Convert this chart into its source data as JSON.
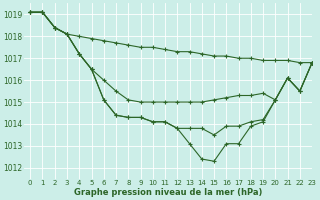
{
  "title": "Graphe pression niveau de la mer (hPa)",
  "bg_color": "#cceee8",
  "grid_color": "#b8d8d0",
  "line_color": "#2d6628",
  "xlim": [
    -0.5,
    23
  ],
  "ylim": [
    1011.5,
    1019.5
  ],
  "yticks": [
    1012,
    1013,
    1014,
    1015,
    1016,
    1017,
    1018,
    1019
  ],
  "xticks": [
    0,
    1,
    2,
    3,
    4,
    5,
    6,
    7,
    8,
    9,
    10,
    11,
    12,
    13,
    14,
    15,
    16,
    17,
    18,
    19,
    20,
    21,
    22,
    23
  ],
  "series": [
    {
      "x": [
        0,
        1,
        2,
        3,
        4,
        5,
        6,
        7,
        8,
        9,
        10,
        11,
        12,
        13,
        14,
        15,
        16,
        17,
        18,
        19,
        20,
        21,
        22,
        23
      ],
      "y": [
        1019.1,
        1019.1,
        1018.4,
        1018.1,
        1018.0,
        1017.9,
        1017.8,
        1017.7,
        1017.6,
        1017.5,
        1017.5,
        1017.4,
        1017.3,
        1017.3,
        1017.2,
        1017.1,
        1017.1,
        1017.0,
        1017.0,
        1016.9,
        1016.9,
        1016.9,
        1016.8,
        1016.8
      ]
    },
    {
      "x": [
        0,
        1,
        2,
        3,
        4,
        5,
        6,
        7,
        8,
        9,
        10,
        11,
        12,
        13,
        14,
        15,
        16,
        17,
        18,
        19,
        20,
        21,
        22,
        23
      ],
      "y": [
        1019.1,
        1019.1,
        1018.4,
        1018.1,
        1017.2,
        1016.5,
        1016.0,
        1015.5,
        1015.1,
        1015.0,
        1015.0,
        1015.0,
        1015.0,
        1015.0,
        1015.0,
        1015.1,
        1015.2,
        1015.3,
        1015.3,
        1015.4,
        1015.1,
        1016.1,
        1015.5,
        1016.8
      ]
    },
    {
      "x": [
        0,
        1,
        2,
        3,
        4,
        5,
        6,
        7,
        8,
        9,
        10,
        11,
        12,
        13,
        14,
        15,
        16,
        17,
        18,
        19,
        20,
        21,
        22,
        23
      ],
      "y": [
        1019.1,
        1019.1,
        1018.4,
        1018.1,
        1017.2,
        1016.5,
        1015.1,
        1014.4,
        1014.3,
        1014.3,
        1014.1,
        1014.1,
        1013.8,
        1013.8,
        1013.8,
        1013.5,
        1013.9,
        1013.9,
        1014.1,
        1014.2,
        1015.1,
        1016.1,
        1015.5,
        1016.8
      ]
    },
    {
      "x": [
        0,
        1,
        2,
        3,
        4,
        5,
        6,
        7,
        8,
        9,
        10,
        11,
        12,
        13,
        14,
        15,
        16,
        17,
        18,
        19,
        20,
        21,
        22,
        23
      ],
      "y": [
        1019.1,
        1019.1,
        1018.4,
        1018.1,
        1017.2,
        1016.5,
        1015.1,
        1014.4,
        1014.3,
        1014.3,
        1014.1,
        1014.1,
        1013.8,
        1013.1,
        1012.4,
        1012.3,
        1013.1,
        1013.1,
        1013.9,
        1014.1,
        1015.1,
        1016.1,
        1015.5,
        1016.8
      ]
    }
  ]
}
